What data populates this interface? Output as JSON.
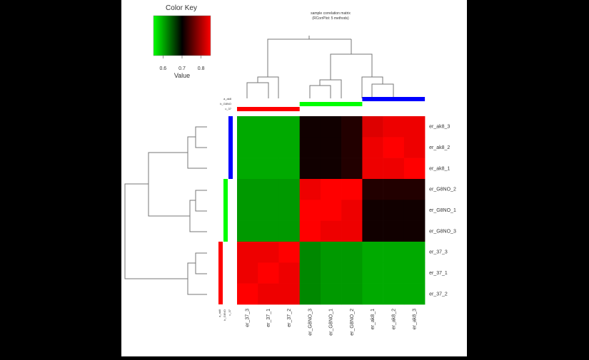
{
  "chart_data": {
    "type": "heatmap",
    "title": "sample correlation matrix",
    "subtitle": "(RCorrPlot: 5 methods)",
    "color_key": {
      "title": "Color Key",
      "xlabel": "Value",
      "ticks": [
        0.6,
        0.7,
        0.8
      ],
      "range": [
        0.55,
        0.85
      ],
      "palette": [
        "#00ff00",
        "#000000",
        "#ff0000"
      ]
    },
    "rows": [
      "er_ak8_3",
      "er_ak8_2",
      "er_ak8_1",
      "er_G8NO_2",
      "er_G8NO_1",
      "er_G8NO_3",
      "er_37_3",
      "er_37_1",
      "er_37_2"
    ],
    "columns": [
      "er_37_3",
      "er_37_1",
      "er_37_2",
      "er_G8NO_3",
      "er_G8NO_1",
      "er_G8NO_2",
      "er_ak8_1",
      "er_ak8_2",
      "er_ak8_3"
    ],
    "values": [
      [
        0.6,
        0.6,
        0.6,
        0.71,
        0.71,
        0.72,
        0.83,
        0.84,
        0.84
      ],
      [
        0.6,
        0.6,
        0.6,
        0.71,
        0.71,
        0.72,
        0.84,
        0.85,
        0.84
      ],
      [
        0.6,
        0.6,
        0.6,
        0.71,
        0.71,
        0.72,
        0.84,
        0.84,
        0.85
      ],
      [
        0.61,
        0.61,
        0.61,
        0.84,
        0.85,
        0.85,
        0.72,
        0.72,
        0.72
      ],
      [
        0.61,
        0.61,
        0.61,
        0.85,
        0.85,
        0.84,
        0.71,
        0.71,
        0.71
      ],
      [
        0.61,
        0.61,
        0.61,
        0.85,
        0.84,
        0.84,
        0.71,
        0.71,
        0.71
      ],
      [
        0.84,
        0.84,
        0.85,
        0.62,
        0.61,
        0.61,
        0.6,
        0.6,
        0.6
      ],
      [
        0.84,
        0.85,
        0.84,
        0.62,
        0.61,
        0.61,
        0.6,
        0.6,
        0.6
      ],
      [
        0.85,
        0.84,
        0.84,
        0.62,
        0.61,
        0.61,
        0.6,
        0.6,
        0.6
      ]
    ],
    "column_groups": [
      "#ff0000",
      "#00ff00",
      "#0000ff"
    ],
    "row_groups": [
      "#0000ff",
      "#00ff00",
      "#ff0000"
    ],
    "sidebar_col_labels": [
      "a_ak8",
      "b_G8NO",
      "c_37"
    ],
    "sidebar_row_labels": [
      "a_ak8",
      "b_G8NO",
      "c_37"
    ],
    "dendrogram": "both"
  }
}
